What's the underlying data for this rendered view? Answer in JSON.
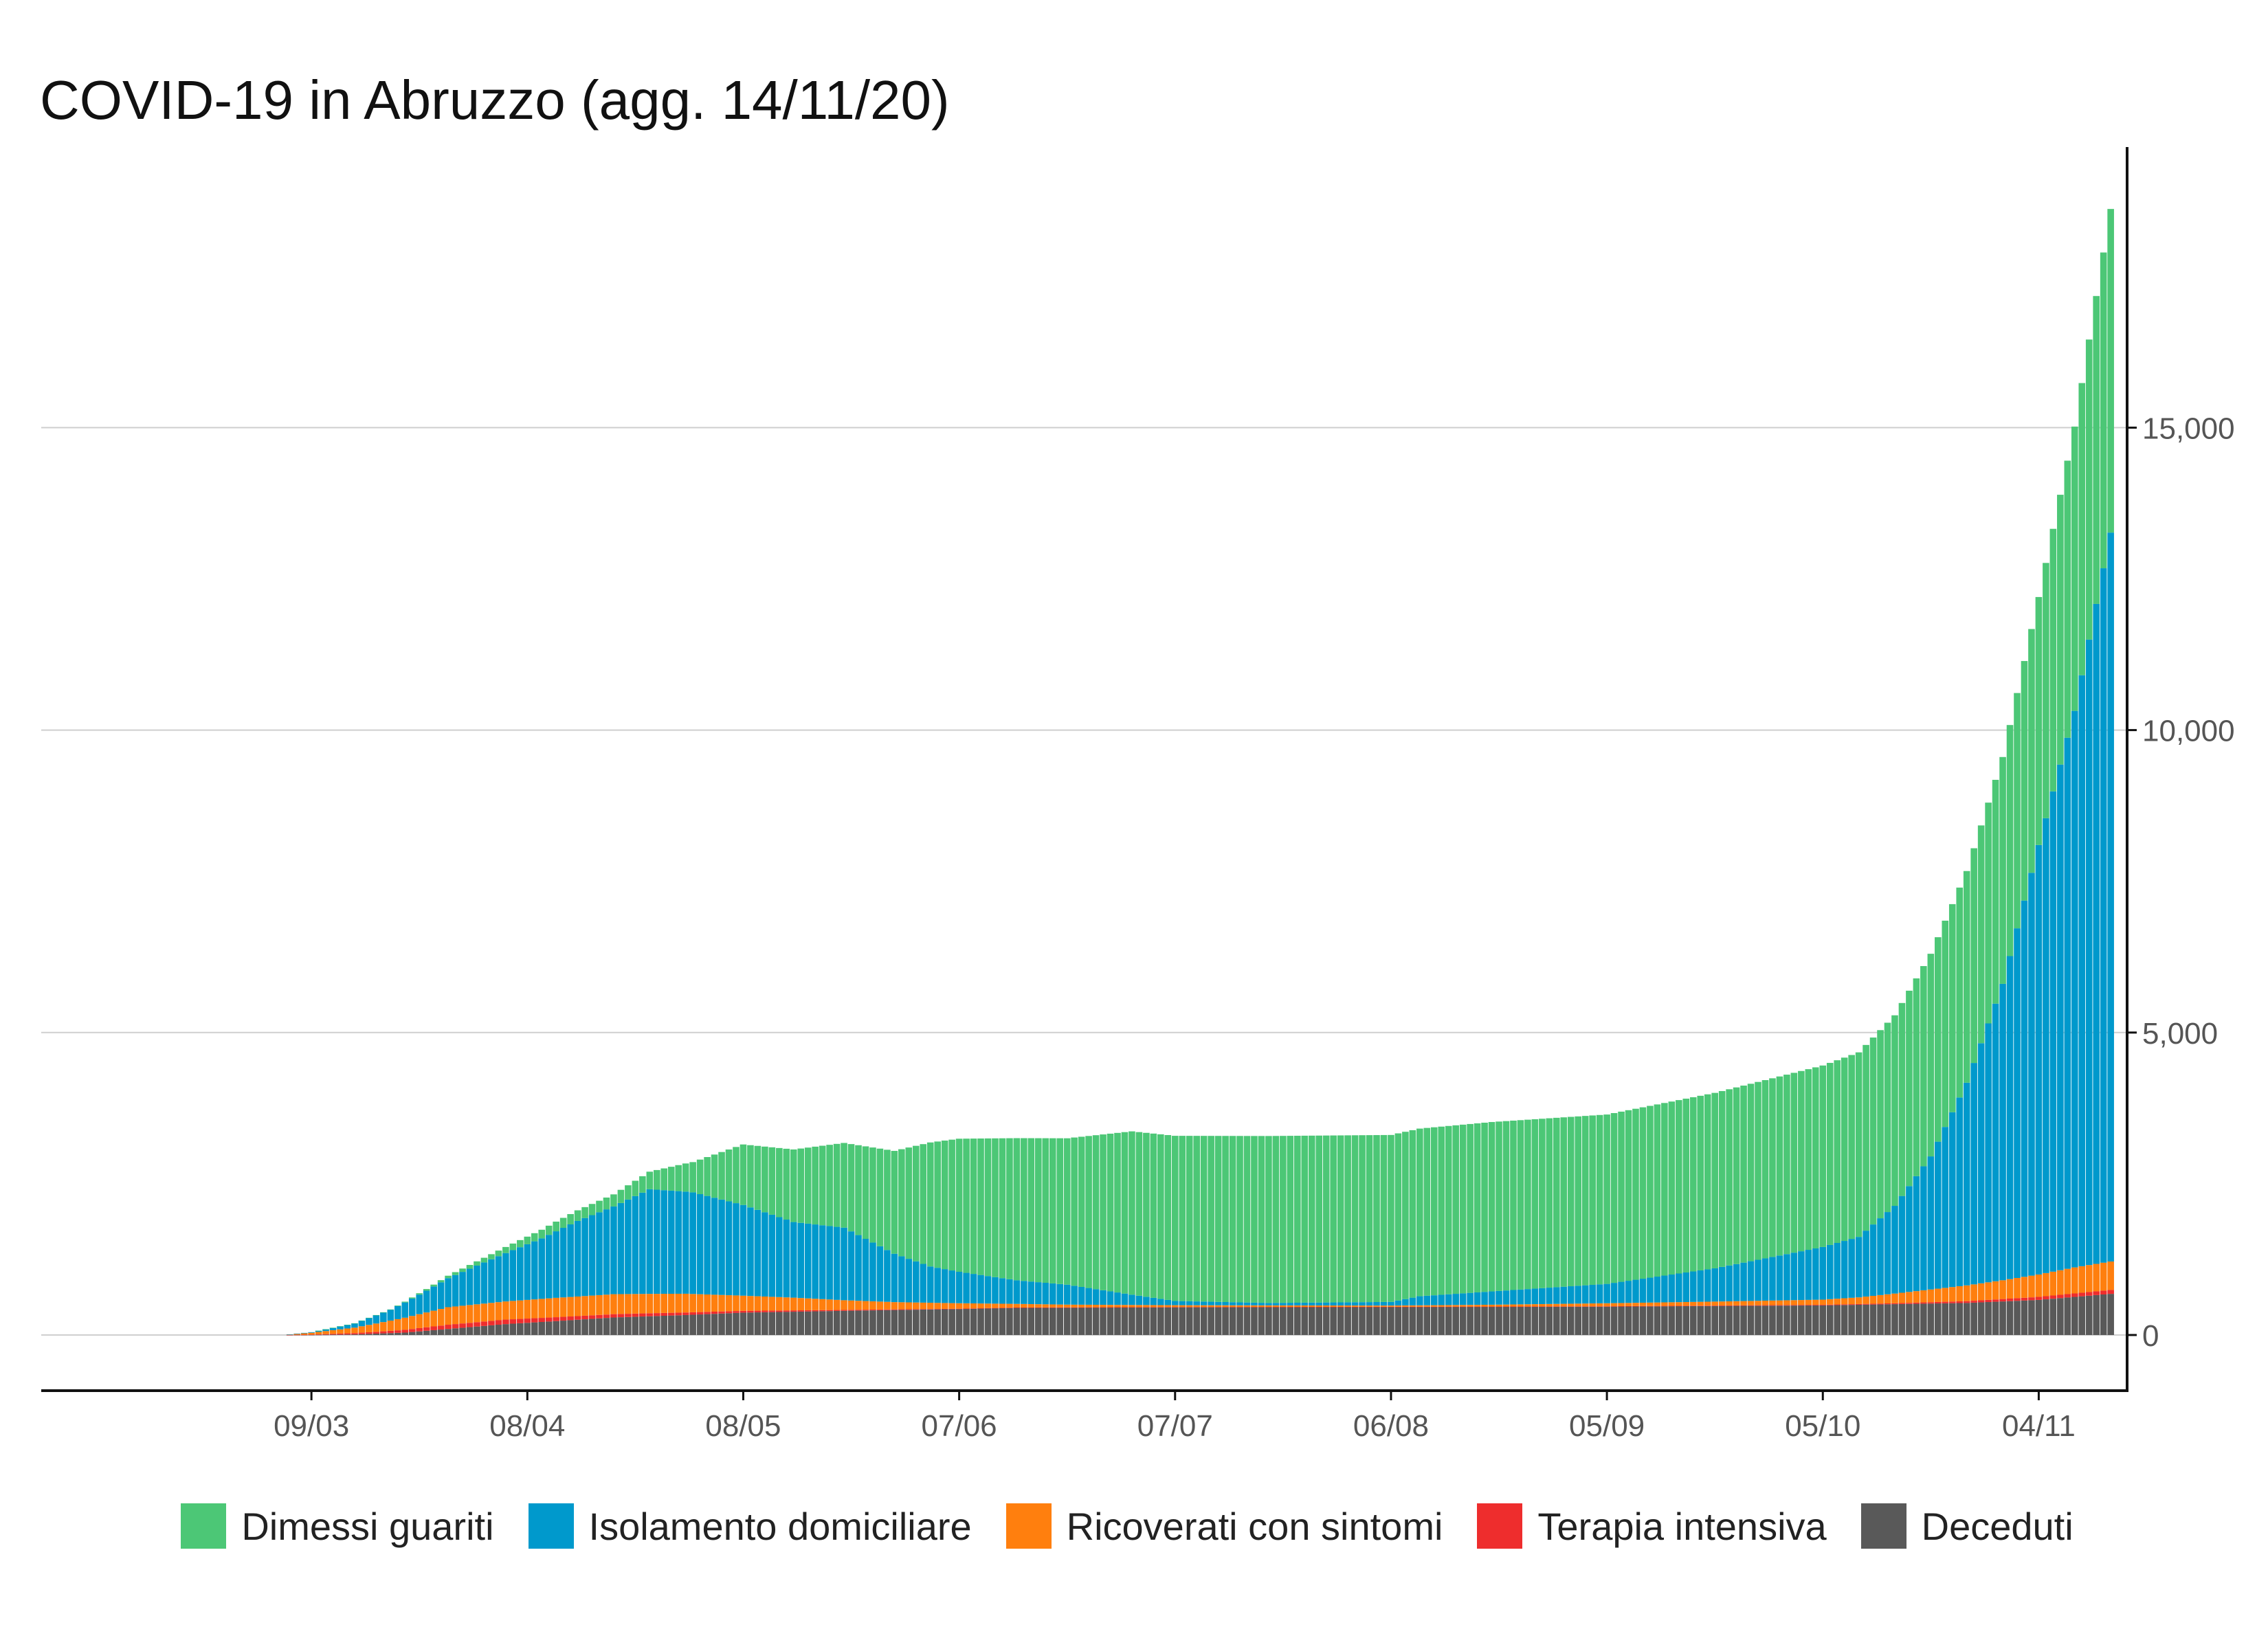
{
  "chart_data": {
    "type": "bar",
    "stacked": true,
    "title": "COVID-19 in Abruzzo (agg. 14/11/20)",
    "xlabel": "",
    "ylabel": "",
    "y_axis_position": "right",
    "ylim": [
      -1150,
      19300
    ],
    "yticks": [
      0,
      5000,
      10000,
      15000
    ],
    "ytick_labels": [
      "0",
      "5,000",
      "10,000",
      "15,000"
    ],
    "x_start_date": "2020-02-25",
    "x_end_date": "2020-11-14",
    "xticks": [
      "2020-03-09",
      "2020-04-08",
      "2020-05-08",
      "2020-06-07",
      "2020-07-07",
      "2020-08-06",
      "2020-09-05",
      "2020-10-05",
      "2020-11-04"
    ],
    "xtick_labels": [
      "09/03",
      "08/04",
      "08/05",
      "07/06",
      "07/07",
      "06/08",
      "05/09",
      "05/10",
      "04/11"
    ],
    "grid": "horizontal",
    "legend_position": "bottom",
    "series_order_bottom_to_top": [
      "Deceduti",
      "Terapia intensiva",
      "Ricoverati con sintomi",
      "Isolamento domiciliare",
      "Dimessi guariti"
    ],
    "series": [
      {
        "name": "Dimessi guariti",
        "color": "#4CC776",
        "keyframes": [
          [
            "2020-02-25",
            0
          ],
          [
            "2020-03-09",
            0
          ],
          [
            "2020-03-20",
            5
          ],
          [
            "2020-03-28",
            40
          ],
          [
            "2020-04-05",
            100
          ],
          [
            "2020-04-12",
            160
          ],
          [
            "2020-04-20",
            200
          ],
          [
            "2020-04-25",
            290
          ],
          [
            "2020-05-01",
            500
          ],
          [
            "2020-05-08",
            1000
          ],
          [
            "2020-05-15",
            1200
          ],
          [
            "2020-05-22",
            1400
          ],
          [
            "2020-05-29",
            1700
          ],
          [
            "2020-06-03",
            2050
          ],
          [
            "2020-06-07",
            2200
          ],
          [
            "2020-06-15",
            2350
          ],
          [
            "2020-06-22",
            2420
          ],
          [
            "2020-07-01",
            2700
          ],
          [
            "2020-07-07",
            2730
          ],
          [
            "2020-07-20",
            2760
          ],
          [
            "2020-08-06",
            2760
          ],
          [
            "2020-08-20",
            2800
          ],
          [
            "2020-09-05",
            2800
          ],
          [
            "2020-09-20",
            2900
          ],
          [
            "2020-10-05",
            3000
          ],
          [
            "2020-10-10",
            3050
          ],
          [
            "2020-10-15",
            3150
          ],
          [
            "2020-10-20",
            3350
          ],
          [
            "2020-10-25",
            3500
          ],
          [
            "2020-10-30",
            3750
          ],
          [
            "2020-11-04",
            4100
          ],
          [
            "2020-11-09",
            4700
          ],
          [
            "2020-11-14",
            5350
          ]
        ]
      },
      {
        "name": "Isolamento domiciliare",
        "color": "#0099CC",
        "keyframes": [
          [
            "2020-02-25",
            0
          ],
          [
            "2020-03-05",
            0
          ],
          [
            "2020-03-09",
            10
          ],
          [
            "2020-03-15",
            70
          ],
          [
            "2020-03-20",
            180
          ],
          [
            "2020-03-25",
            360
          ],
          [
            "2020-03-30",
            560
          ],
          [
            "2020-04-05",
            800
          ],
          [
            "2020-04-10",
            1000
          ],
          [
            "2020-04-15",
            1250
          ],
          [
            "2020-04-20",
            1450
          ],
          [
            "2020-04-25",
            1730
          ],
          [
            "2020-05-01",
            1680
          ],
          [
            "2020-05-08",
            1500
          ],
          [
            "2020-05-15",
            1250
          ],
          [
            "2020-05-22",
            1200
          ],
          [
            "2020-05-29",
            800
          ],
          [
            "2020-06-03",
            600
          ],
          [
            "2020-06-07",
            520
          ],
          [
            "2020-06-15",
            390
          ],
          [
            "2020-06-22",
            330
          ],
          [
            "2020-07-01",
            170
          ],
          [
            "2020-07-07",
            70
          ],
          [
            "2020-07-20",
            40
          ],
          [
            "2020-08-06",
            60
          ],
          [
            "2020-08-10",
            150
          ],
          [
            "2020-08-20",
            220
          ],
          [
            "2020-09-05",
            320
          ],
          [
            "2020-09-20",
            550
          ],
          [
            "2020-10-05",
            870
          ],
          [
            "2020-10-10",
            1000
          ],
          [
            "2020-10-15",
            1450
          ],
          [
            "2020-10-20",
            2200
          ],
          [
            "2020-10-25",
            3350
          ],
          [
            "2020-10-30",
            4900
          ],
          [
            "2020-11-04",
            7100
          ],
          [
            "2020-11-09",
            9200
          ],
          [
            "2020-11-14",
            12050
          ]
        ]
      },
      {
        "name": "Ricoverati con sintomi",
        "color": "#FF7F0E",
        "keyframes": [
          [
            "2020-02-25",
            0
          ],
          [
            "2020-03-05",
            0
          ],
          [
            "2020-03-09",
            30
          ],
          [
            "2020-03-15",
            90
          ],
          [
            "2020-03-22",
            200
          ],
          [
            "2020-03-28",
            290
          ],
          [
            "2020-04-05",
            300
          ],
          [
            "2020-04-12",
            320
          ],
          [
            "2020-04-20",
            330
          ],
          [
            "2020-04-30",
            310
          ],
          [
            "2020-05-08",
            250
          ],
          [
            "2020-05-15",
            210
          ],
          [
            "2020-05-22",
            160
          ],
          [
            "2020-05-29",
            120
          ],
          [
            "2020-06-07",
            90
          ],
          [
            "2020-06-15",
            60
          ],
          [
            "2020-06-22",
            45
          ],
          [
            "2020-07-07",
            30
          ],
          [
            "2020-07-20",
            25
          ],
          [
            "2020-08-06",
            20
          ],
          [
            "2020-08-20",
            30
          ],
          [
            "2020-09-05",
            50
          ],
          [
            "2020-09-20",
            65
          ],
          [
            "2020-10-05",
            85
          ],
          [
            "2020-10-10",
            110
          ],
          [
            "2020-10-15",
            160
          ],
          [
            "2020-10-20",
            210
          ],
          [
            "2020-10-25",
            260
          ],
          [
            "2020-10-30",
            310
          ],
          [
            "2020-11-04",
            370
          ],
          [
            "2020-11-09",
            430
          ],
          [
            "2020-11-14",
            470
          ]
        ]
      },
      {
        "name": "Terapia intensiva",
        "color": "#EE2D2D",
        "keyframes": [
          [
            "2020-02-25",
            0
          ],
          [
            "2020-03-05",
            0
          ],
          [
            "2020-03-09",
            5
          ],
          [
            "2020-03-18",
            30
          ],
          [
            "2020-03-28",
            70
          ],
          [
            "2020-04-05",
            75
          ],
          [
            "2020-04-15",
            60
          ],
          [
            "2020-04-25",
            50
          ],
          [
            "2020-05-08",
            30
          ],
          [
            "2020-05-22",
            15
          ],
          [
            "2020-06-07",
            5
          ],
          [
            "2020-07-07",
            3
          ],
          [
            "2020-08-06",
            2
          ],
          [
            "2020-09-05",
            5
          ],
          [
            "2020-10-05",
            10
          ],
          [
            "2020-10-15",
            15
          ],
          [
            "2020-10-25",
            30
          ],
          [
            "2020-11-04",
            50
          ],
          [
            "2020-11-14",
            65
          ]
        ]
      },
      {
        "name": "Deceduti",
        "color": "#595959",
        "keyframes": [
          [
            "2020-02-25",
            0
          ],
          [
            "2020-03-05",
            0
          ],
          [
            "2020-03-09",
            2
          ],
          [
            "2020-03-15",
            10
          ],
          [
            "2020-03-22",
            40
          ],
          [
            "2020-03-28",
            100
          ],
          [
            "2020-04-05",
            180
          ],
          [
            "2020-04-12",
            230
          ],
          [
            "2020-04-20",
            290
          ],
          [
            "2020-04-30",
            330
          ],
          [
            "2020-05-08",
            370
          ],
          [
            "2020-05-22",
            400
          ],
          [
            "2020-06-07",
            430
          ],
          [
            "2020-06-15",
            450
          ],
          [
            "2020-07-07",
            460
          ],
          [
            "2020-08-06",
            465
          ],
          [
            "2020-09-05",
            470
          ],
          [
            "2020-10-05",
            490
          ],
          [
            "2020-10-15",
            510
          ],
          [
            "2020-10-25",
            530
          ],
          [
            "2020-11-04",
            580
          ],
          [
            "2020-11-14",
            680
          ]
        ]
      }
    ]
  }
}
